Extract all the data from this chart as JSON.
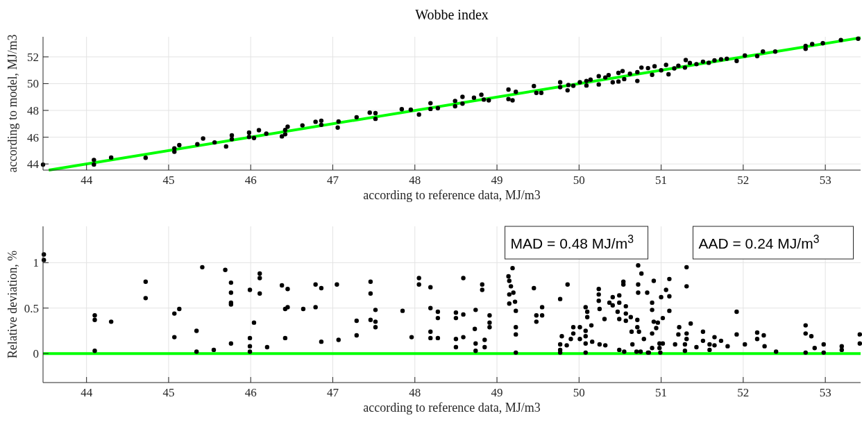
{
  "chart_data": [
    {
      "type": "scatter",
      "title": "Wobbe index",
      "xlabel": "according to reference data, MJ/m3",
      "ylabel": "according to model, MJ/m3",
      "xlim": [
        43.47,
        53.43
      ],
      "ylim": [
        43.54,
        53.5
      ],
      "xticks": [
        44,
        45,
        46,
        47,
        48,
        49,
        50,
        51,
        52,
        53
      ],
      "yticks": [
        44,
        46,
        48,
        50,
        52
      ],
      "grid": true,
      "series": [
        {
          "type": "line",
          "color": "#00ff00",
          "x": [
            43.54,
            53.43
          ],
          "values": [
            43.54,
            53.43
          ]
        },
        {
          "marker": "circle",
          "color": "#000000",
          "x": [
            43.47,
            44.09,
            44.09,
            44.3,
            44.72,
            45.07,
            45.07,
            45.13,
            45.35,
            45.56,
            45.7,
            45.42,
            45.77,
            45.77,
            45.98,
            45.98,
            46.04,
            46.1,
            46.19,
            46.38,
            46.42,
            46.42,
            46.45,
            46.63,
            46.79,
            46.86,
            46.86,
            47.06,
            47.07,
            47.29,
            47.45,
            47.52,
            47.52,
            47.84,
            47.95,
            48.05,
            48.19,
            48.19,
            48.28,
            48.49,
            48.49,
            48.58,
            48.58,
            48.72,
            48.81,
            48.84,
            48.9,
            49.14,
            49.14,
            49.23,
            49.19,
            49.45,
            49.48,
            49.54,
            49.77,
            49.77,
            49.86,
            49.87,
            49.93,
            50.01,
            50.09,
            50.09,
            50.14,
            50.24,
            50.24,
            50.32,
            50.36,
            50.41,
            50.48,
            50.48,
            50.53,
            50.55,
            50.62,
            50.71,
            50.71,
            50.76,
            50.84,
            50.89,
            50.92,
            51.0,
            51.06,
            51.09,
            51.16,
            51.21,
            51.3,
            51.29,
            51.35,
            51.43,
            51.51,
            51.58,
            51.65,
            51.73,
            51.8,
            51.92,
            52.02,
            52.17,
            52.24,
            52.39,
            52.76,
            52.76,
            52.84,
            52.97,
            53.19,
            53.4
          ],
          "values": [
            43.95,
            44.3,
            43.96,
            44.48,
            44.46,
            45.17,
            44.91,
            45.41,
            45.47,
            45.61,
            45.31,
            45.9,
            46.14,
            45.85,
            46.34,
            46.02,
            45.94,
            46.52,
            46.26,
            46.06,
            46.22,
            46.54,
            46.78,
            46.88,
            47.15,
            47.23,
            46.92,
            46.72,
            47.17,
            47.49,
            47.83,
            47.79,
            47.37,
            48.09,
            48.05,
            47.69,
            48.54,
            48.11,
            48.17,
            48.71,
            48.31,
            49.01,
            48.51,
            48.95,
            49.17,
            48.81,
            48.75,
            49.56,
            48.85,
            49.39,
            48.75,
            49.82,
            49.31,
            49.31,
            50.1,
            49.74,
            49.5,
            49.9,
            49.84,
            50.1,
            50.2,
            49.86,
            50.3,
            50.56,
            49.94,
            50.46,
            50.64,
            50.1,
            50.8,
            50.16,
            50.94,
            50.34,
            50.74,
            50.86,
            50.2,
            51.2,
            51.16,
            50.66,
            51.3,
            51.0,
            51.4,
            50.7,
            51.14,
            51.34,
            51.76,
            51.2,
            51.54,
            51.46,
            51.64,
            51.56,
            51.74,
            51.82,
            51.86,
            51.7,
            52.1,
            52.06,
            52.4,
            52.4,
            52.82,
            52.6,
            52.96,
            53.02,
            53.26,
            53.36
          ]
        }
      ]
    },
    {
      "type": "scatter",
      "xlabel": "according to reference data, MJ/m3",
      "ylabel": "Relative deviation, %",
      "xlim": [
        43.47,
        53.43
      ],
      "ylim": [
        -0.32,
        1.4
      ],
      "xticks": [
        44,
        45,
        46,
        47,
        48,
        49,
        50,
        51,
        52,
        53
      ],
      "yticks": [
        0,
        0.5,
        1
      ],
      "grid": true,
      "annotations": [
        "MAD = 0.48 MJ/m$^{3}$",
        "AAD = 0.24 MJ/m$^{3}$"
      ],
      "series": [
        {
          "type": "line",
          "color": "#00ff00",
          "x": [
            43.47,
            53.43
          ],
          "values": [
            0,
            0
          ]
        },
        {
          "marker": "circle",
          "color": "#000000",
          "x": [
            43.48,
            43.48,
            44.1,
            44.1,
            44.3,
            44.1,
            44.72,
            44.72,
            45.07,
            45.13,
            45.07,
            45.34,
            45.34,
            45.41,
            45.55,
            45.69,
            45.76,
            45.76,
            45.76,
            45.76,
            45.76,
            45.99,
            45.99,
            45.99,
            45.99,
            46.04,
            46.11,
            46.11,
            46.11,
            46.2,
            46.38,
            46.45,
            46.42,
            46.45,
            46.42,
            46.64,
            46.79,
            46.86,
            46.79,
            46.86,
            47.05,
            47.07,
            47.29,
            47.29,
            47.46,
            47.46,
            47.52,
            47.46,
            47.52,
            47.52,
            47.85,
            47.96,
            48.05,
            48.05,
            48.19,
            48.19,
            48.28,
            48.28,
            48.19,
            48.19,
            48.28,
            48.5,
            48.5,
            48.5,
            48.5,
            48.59,
            48.59,
            48.59,
            48.74,
            48.73,
            48.74,
            48.74,
            48.82,
            48.82,
            48.85,
            48.85,
            48.91,
            48.91,
            48.91,
            49.14,
            49.19,
            49.15,
            49.17,
            49.15,
            49.2,
            49.15,
            49.22,
            49.23,
            49.23,
            49.23,
            49.23,
            49.45,
            49.48,
            49.55,
            49.48,
            49.55,
            49.77,
            49.86,
            49.77,
            49.77,
            49.77,
            49.79,
            49.85,
            49.93,
            49.93,
            49.9,
            50.01,
            50.01,
            50.08,
            50.1,
            50.1,
            50.08,
            50.08,
            50.08,
            50.08,
            50.15,
            50.16,
            50.24,
            50.24,
            50.24,
            50.25,
            50.31,
            50.25,
            50.32,
            50.41,
            50.37,
            50.41,
            50.49,
            50.49,
            50.49,
            50.47,
            50.54,
            50.54,
            50.57,
            50.57,
            50.57,
            50.49,
            50.55,
            50.63,
            50.72,
            50.76,
            50.72,
            50.72,
            50.71,
            50.71,
            50.73,
            50.64,
            50.65,
            50.7,
            50.75,
            50.83,
            50.79,
            50.84,
            50.91,
            50.89,
            50.89,
            50.91,
            50.94,
            50.89,
            50.89,
            50.85,
            50.96,
            51.0,
            51.06,
            51.1,
            51.1,
            51.1,
            51.02,
            50.98,
            50.98,
            50.99,
            51.02,
            51.17,
            51.22,
            51.21,
            51.31,
            51.31,
            51.31,
            51.31,
            51.29,
            51.29,
            51.36,
            51.43,
            51.51,
            51.51,
            51.59,
            51.59,
            51.65,
            51.65,
            51.73,
            51.81,
            51.92,
            51.92,
            52.02,
            52.17,
            52.17,
            52.25,
            52.26,
            52.4,
            52.76,
            52.76,
            52.83,
            52.87,
            52.76,
            52.98,
            52.98,
            53.2,
            53.2,
            53.42,
            53.42
          ],
          "values": [
            1.09,
            1.03,
            0.42,
            0.37,
            0.35,
            0.03,
            0.79,
            0.61,
            0.44,
            0.49,
            0.18,
            0.25,
            0.02,
            0.95,
            0.04,
            0.92,
            0.78,
            0.67,
            0.56,
            0.54,
            0.11,
            0.7,
            0.17,
            0.08,
            0.02,
            0.34,
            0.88,
            0.83,
            0.66,
            0.07,
            0.75,
            0.71,
            0.49,
            0.51,
            0.17,
            0.49,
            0.76,
            0.72,
            0.51,
            0.13,
            0.76,
            0.15,
            0.36,
            0.2,
            0.79,
            0.66,
            0.48,
            0.37,
            0.35,
            0.29,
            0.47,
            0.18,
            0.83,
            0.76,
            0.73,
            0.5,
            0.46,
            0.39,
            0.24,
            0.17,
            0.17,
            0.45,
            0.39,
            0.16,
            0.07,
            0.83,
            0.43,
            0.18,
            0.48,
            0.27,
            0.11,
            0.03,
            0.76,
            0.7,
            0.15,
            0.07,
            0.42,
            0.34,
            0.29,
            0.85,
            0.94,
            0.8,
            0.74,
            0.65,
            0.67,
            0.55,
            0.57,
            0.47,
            0.29,
            0.21,
            0.01,
            0.72,
            0.42,
            0.51,
            0.35,
            0.42,
            0.6,
            0.76,
            0.1,
            0.04,
            0.01,
            0.19,
            0.09,
            0.29,
            0.22,
            0.16,
            0.29,
            0.16,
            0.51,
            0.46,
            0.4,
            0.25,
            0.19,
            0.11,
            0.01,
            0.31,
            0.13,
            0.71,
            0.65,
            0.58,
            0.49,
            0.38,
            0.1,
            0.09,
            0.62,
            0.56,
            0.53,
            0.64,
            0.56,
            0.38,
            0.46,
            0.79,
            0.76,
            0.52,
            0.44,
            0.36,
            0.04,
            0.02,
            0.4,
            0.97,
            0.88,
            0.76,
            0.67,
            0.37,
            0.29,
            0.24,
            0.24,
            0.1,
            0.02,
            0.02,
            0.67,
            0.16,
            0.01,
            0.8,
            0.56,
            0.48,
            0.35,
            0.28,
            0.22,
            0.06,
            0.01,
            0.34,
            0.62,
            0.7,
            0.82,
            0.63,
            0.47,
            0.39,
            0.11,
            0.06,
            0.01,
            0.11,
            0.1,
            0.29,
            0.21,
            0.95,
            0.74,
            0.22,
            0.16,
            0.1,
            0.03,
            0.33,
            0.07,
            0.24,
            0.14,
            0.1,
            0.04,
            0.18,
            0.09,
            0.14,
            0.08,
            0.46,
            0.21,
            0.1,
            0.23,
            0.16,
            0.2,
            0.08,
            0.02,
            0.31,
            0.22,
            0.19,
            0.06,
            0.01,
            0.1,
            0.01,
            0.08,
            0.04,
            0.21,
            0.11
          ]
        }
      ]
    }
  ]
}
